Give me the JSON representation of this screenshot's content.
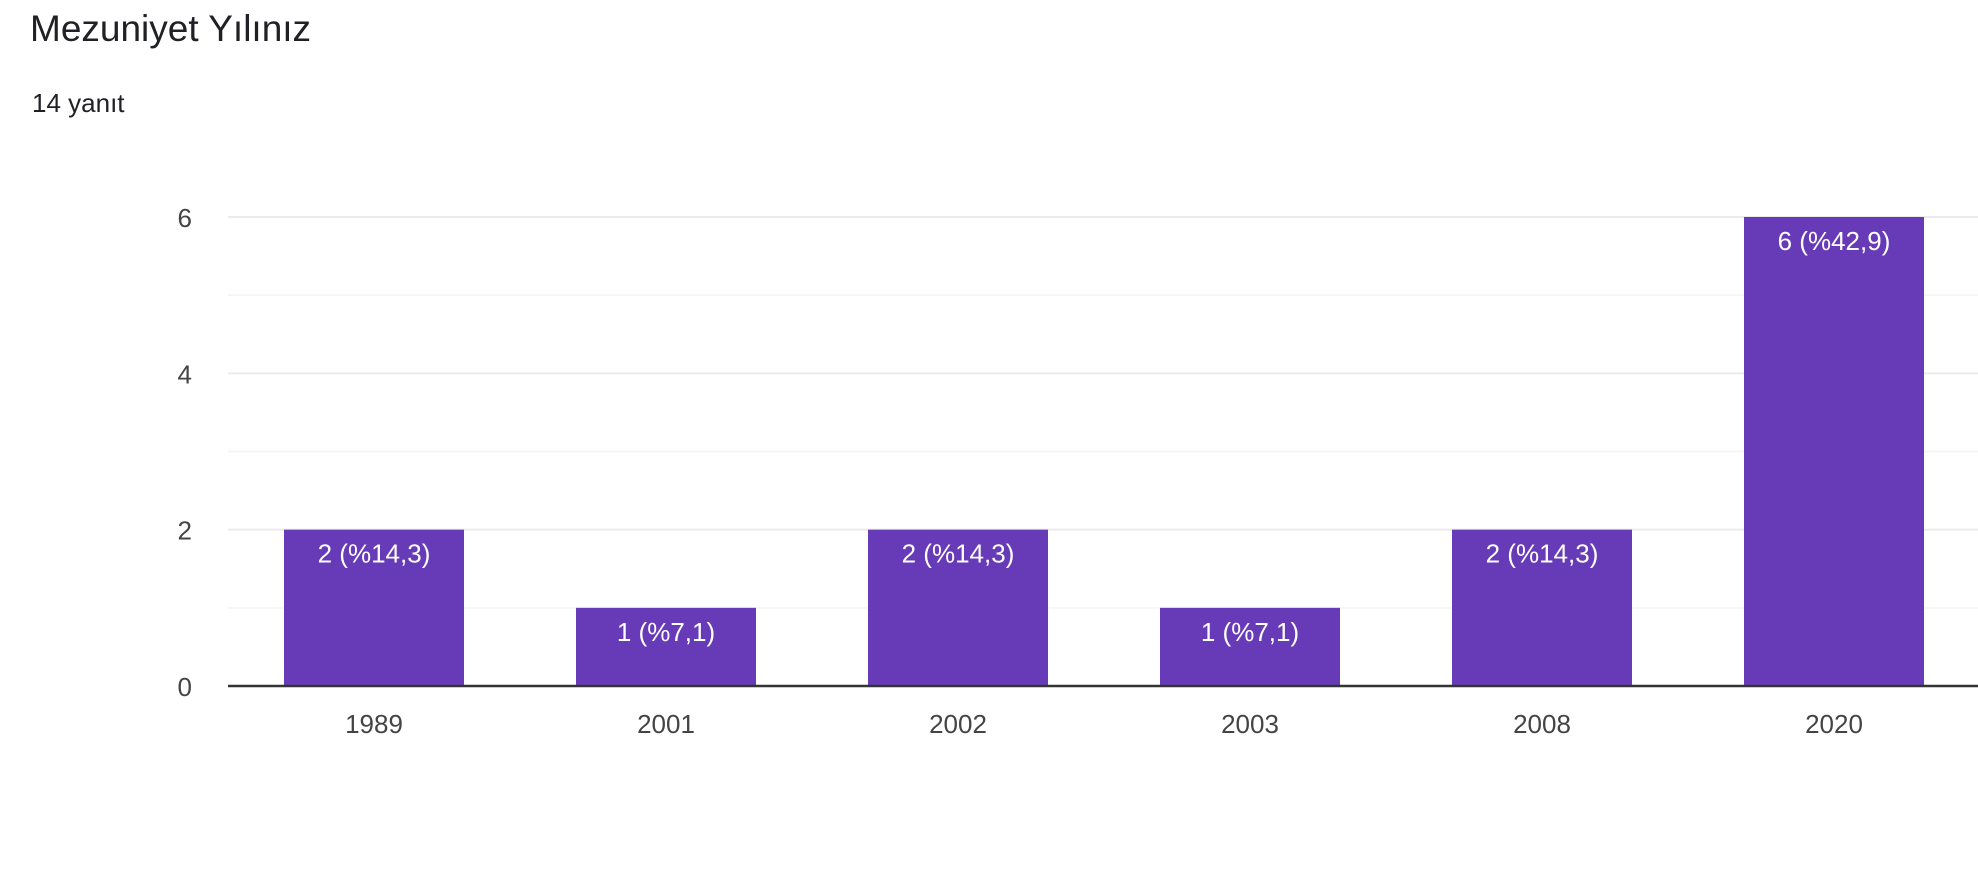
{
  "question": {
    "title": "Mezuniyet Yılınız",
    "response_count": "14 yanıt"
  },
  "colors": {
    "bar": "#673ab7",
    "grid": "#ebebeb",
    "axis": "#333333",
    "tick_text": "#444444",
    "bar_label": "#ffffff"
  },
  "chart_data": {
    "type": "bar",
    "categories": [
      "1989",
      "2001",
      "2002",
      "2003",
      "2008",
      "2020"
    ],
    "values": [
      2,
      1,
      2,
      1,
      2,
      6
    ],
    "data_labels": [
      "2 (%14,3)",
      "1 (%7,1)",
      "2 (%14,3)",
      "1 (%7,1)",
      "2 (%14,3)",
      "6 (%42,9)"
    ],
    "ylim": [
      0,
      6
    ],
    "yticks": [
      "0",
      "2",
      "4",
      "6"
    ],
    "grid": true,
    "legend": "none"
  }
}
